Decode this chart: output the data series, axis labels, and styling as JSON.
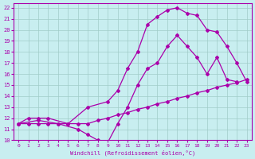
{
  "xlabel": "Windchill (Refroidissement éolien,°C)",
  "bg_color": "#c8eef0",
  "grid_color": "#a0ccc8",
  "line_color": "#aa00aa",
  "xlim": [
    -0.5,
    23.5
  ],
  "ylim": [
    10,
    22.4
  ],
  "xticks": [
    0,
    1,
    2,
    3,
    4,
    5,
    6,
    7,
    8,
    9,
    10,
    11,
    12,
    13,
    14,
    15,
    16,
    17,
    18,
    19,
    20,
    21,
    22,
    23
  ],
  "yticks": [
    10,
    11,
    12,
    13,
    14,
    15,
    16,
    17,
    18,
    19,
    20,
    21,
    22
  ],
  "line1_x": [
    0,
    1,
    2,
    3,
    4,
    5,
    6,
    7,
    8,
    9,
    10,
    11,
    12,
    13,
    14,
    15,
    16,
    17,
    18,
    19,
    20,
    21,
    22,
    23
  ],
  "line1_y": [
    11.5,
    11.5,
    11.5,
    11.5,
    11.5,
    11.5,
    11.5,
    11.5,
    11.8,
    12.0,
    12.3,
    12.5,
    12.8,
    13.0,
    13.3,
    13.5,
    13.8,
    14.0,
    14.3,
    14.5,
    14.8,
    15.0,
    15.2,
    15.5
  ],
  "line2_x": [
    0,
    2,
    4,
    6,
    7,
    8,
    9,
    10,
    11,
    12,
    13,
    14,
    15,
    16,
    17,
    18,
    19,
    20,
    21,
    22
  ],
  "line2_y": [
    11.5,
    11.8,
    11.5,
    11.0,
    10.5,
    10.0,
    9.8,
    11.5,
    13.0,
    15.0,
    16.5,
    17.0,
    18.5,
    19.5,
    18.5,
    17.5,
    16.0,
    17.5,
    15.5,
    15.3
  ],
  "line3_x": [
    0,
    1,
    2,
    3,
    5,
    7,
    9,
    10,
    11,
    12,
    13,
    14,
    15,
    16,
    17,
    18,
    19,
    20,
    21,
    22,
    23
  ],
  "line3_y": [
    11.5,
    12.0,
    12.0,
    12.0,
    11.5,
    13.0,
    13.5,
    14.5,
    16.5,
    18.0,
    20.5,
    21.2,
    21.8,
    22.0,
    21.5,
    21.3,
    20.0,
    19.8,
    18.5,
    17.0,
    15.3
  ]
}
